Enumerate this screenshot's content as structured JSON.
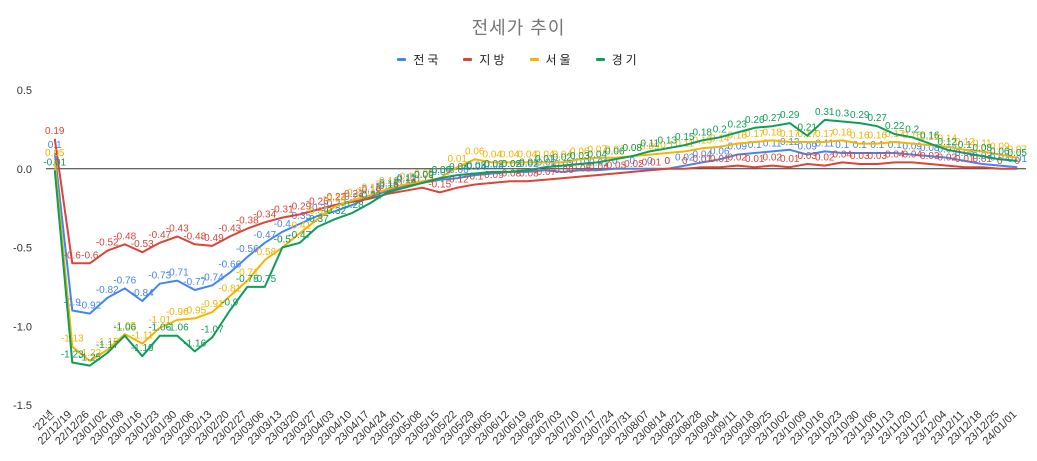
{
  "chart_data": {
    "type": "line",
    "title": "전세가 추이",
    "legend_position": "top",
    "xlabel": "",
    "ylabel": "",
    "ylim": [
      -1.5,
      0.5
    ],
    "yticks": [
      "0.5",
      "0.0",
      "-0.5",
      "-1.0",
      "-1.5"
    ],
    "ytick_values": [
      0.5,
      0,
      -0.5,
      -1.0,
      -1.5
    ],
    "categories": [
      "'22년",
      "22/12/19",
      "22/12/26",
      "23/01/02",
      "23/01/09",
      "23/01/16",
      "23/01/23",
      "23/01/30",
      "23/02/06",
      "23/02/13",
      "23/02/20",
      "23/02/27",
      "23/03/06",
      "23/03/13",
      "23/03/20",
      "23/03/27",
      "23/04/03",
      "23/04/10",
      "23/04/17",
      "23/04/24",
      "23/05/01",
      "23/05/08",
      "23/05/15",
      "23/05/22",
      "23/05/29",
      "23/06/05",
      "23/06/12",
      "23/06/19",
      "23/06/26",
      "23/07/03",
      "23/07/10",
      "23/07/17",
      "23/07/24",
      "23/07/31",
      "23/08/07",
      "23/08/14",
      "23/08/21",
      "23/08/28",
      "23/09/04",
      "23/09/11",
      "23/09/18",
      "23/09/25",
      "23/10/02",
      "23/10/09",
      "23/10/16",
      "23/10/23",
      "23/10/30",
      "23/11/06",
      "23/11/13",
      "23/11/20",
      "23/11/27",
      "23/12/04",
      "23/12/11",
      "23/12/18",
      "23/12/25",
      "24/01/01"
    ],
    "series": [
      {
        "name": "전국",
        "color": "#4285f4",
        "values": [
          0.1,
          -0.9,
          -0.92,
          -0.82,
          -0.76,
          -0.84,
          -0.73,
          -0.71,
          -0.77,
          -0.74,
          -0.66,
          -0.56,
          -0.47,
          -0.4,
          -0.35,
          -0.3,
          -0.27,
          -0.23,
          -0.18,
          -0.14,
          -0.11,
          -0.09,
          -0.07,
          -0.06,
          -0.04,
          -0.03,
          -0.02,
          -0.02,
          -0.01,
          -0.02,
          -0.01,
          -0.01,
          0.0,
          0.0,
          0.0,
          0.0,
          0.02,
          0.04,
          0.06,
          0.09,
          0.1,
          0.11,
          0.12,
          0.09,
          0.11,
          0.1,
          0.1,
          0.1,
          0.1,
          0.09,
          0.08,
          0.07,
          0.05,
          0.03,
          0.02,
          0.01
        ]
      },
      {
        "name": "지방",
        "color": "#db4437",
        "values": [
          0.19,
          -0.6,
          -0.6,
          -0.52,
          -0.48,
          -0.53,
          -0.47,
          -0.43,
          -0.48,
          -0.49,
          -0.43,
          -0.38,
          -0.34,
          -0.31,
          -0.29,
          -0.26,
          -0.23,
          -0.21,
          -0.19,
          -0.16,
          -0.14,
          -0.12,
          -0.15,
          -0.12,
          -0.1,
          -0.09,
          -0.08,
          -0.08,
          -0.07,
          -0.06,
          -0.05,
          -0.04,
          -0.03,
          -0.02,
          -0.01,
          0.0,
          0.0,
          0.01,
          0.01,
          0.02,
          0.01,
          0.02,
          0.01,
          0.03,
          0.02,
          0.04,
          0.03,
          0.03,
          0.04,
          0.04,
          0.03,
          0.02,
          0.01,
          0.01,
          0.0,
          0.0
        ]
      },
      {
        "name": "서울",
        "color": "#f4b400",
        "values": [
          0.05,
          -1.13,
          -1.22,
          -1.15,
          -1.05,
          -1.11,
          -1.01,
          -0.96,
          -0.95,
          -0.91,
          -0.81,
          -0.71,
          -0.58,
          -0.5,
          -0.41,
          -0.32,
          -0.24,
          -0.2,
          -0.17,
          -0.13,
          -0.1,
          -0.08,
          -0.06,
          0.01,
          0.06,
          0.04,
          0.04,
          0.04,
          0.04,
          0.04,
          0.06,
          0.07,
          0.07,
          0.08,
          0.09,
          0.1,
          0.11,
          0.13,
          0.14,
          0.16,
          0.17,
          0.18,
          0.17,
          0.17,
          0.17,
          0.18,
          0.16,
          0.16,
          0.17,
          0.16,
          0.15,
          0.14,
          0.12,
          0.11,
          0.09,
          0.07
        ]
      },
      {
        "name": "경기",
        "color": "#0f9d58",
        "values": [
          -0.01,
          -1.23,
          -1.25,
          -1.17,
          -1.06,
          -1.19,
          -1.06,
          -1.06,
          -1.16,
          -1.07,
          -0.9,
          -0.75,
          -0.75,
          -0.5,
          -0.47,
          -0.37,
          -0.32,
          -0.28,
          -0.22,
          -0.15,
          -0.12,
          -0.09,
          -0.06,
          -0.04,
          -0.03,
          -0.02,
          -0.02,
          -0.01,
          0.01,
          0.02,
          0.03,
          0.04,
          0.06,
          0.08,
          0.11,
          0.13,
          0.15,
          0.18,
          0.2,
          0.23,
          0.26,
          0.27,
          0.29,
          0.21,
          0.31,
          0.3,
          0.29,
          0.27,
          0.22,
          0.2,
          0.16,
          0.12,
          0.1,
          0.08,
          0.06,
          0.05
        ]
      }
    ]
  }
}
